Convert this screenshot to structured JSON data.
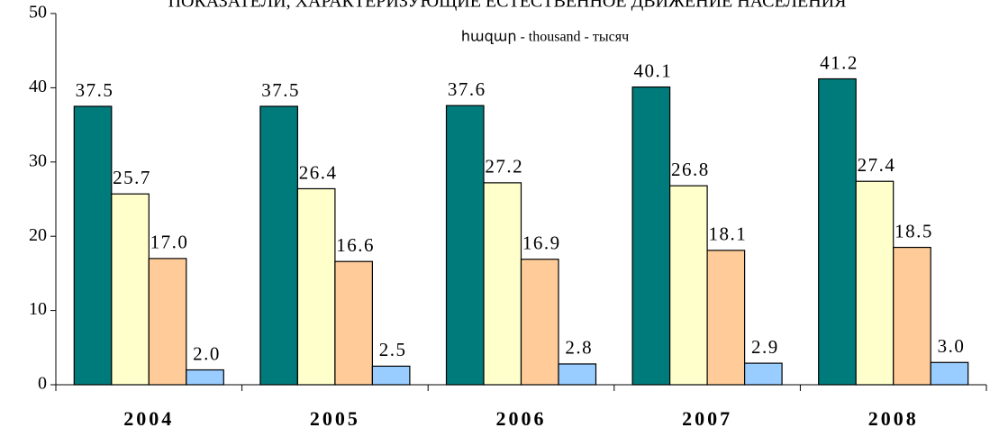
{
  "chart_data": {
    "type": "bar",
    "title": "ПОКАЗАТЕЛИ, ХАРАКТЕРИЗУЮЩИЕ ЕСТЕСТВЕННОЕ ДВИЖЕНИЕ НАСЕЛЕНИЯ",
    "subtitle": "հազար - thousand - тысяч",
    "categories": [
      "2004",
      "2005",
      "2006",
      "2007",
      "2008"
    ],
    "series": [
      {
        "color": "#007b7b",
        "values": [
          37.5,
          37.5,
          37.6,
          40.1,
          41.2
        ]
      },
      {
        "color": "#ffffcc",
        "values": [
          25.7,
          26.4,
          27.2,
          26.8,
          27.4
        ]
      },
      {
        "color": "#ffcc99",
        "values": [
          17,
          16.6,
          16.9,
          18.1,
          18.5
        ],
        "value_labels": [
          "17.0",
          "16.6",
          "16.9",
          "18.1",
          "18.5"
        ]
      },
      {
        "color": "#99ccff",
        "values": [
          2,
          2.5,
          2.8,
          2.9,
          3
        ],
        "value_labels": [
          "2.0",
          "2.5",
          "2.8",
          "2.9",
          "3.0"
        ]
      }
    ],
    "ylim": [
      0,
      50
    ],
    "yticks": [
      0,
      10,
      20,
      30,
      40,
      50
    ]
  }
}
